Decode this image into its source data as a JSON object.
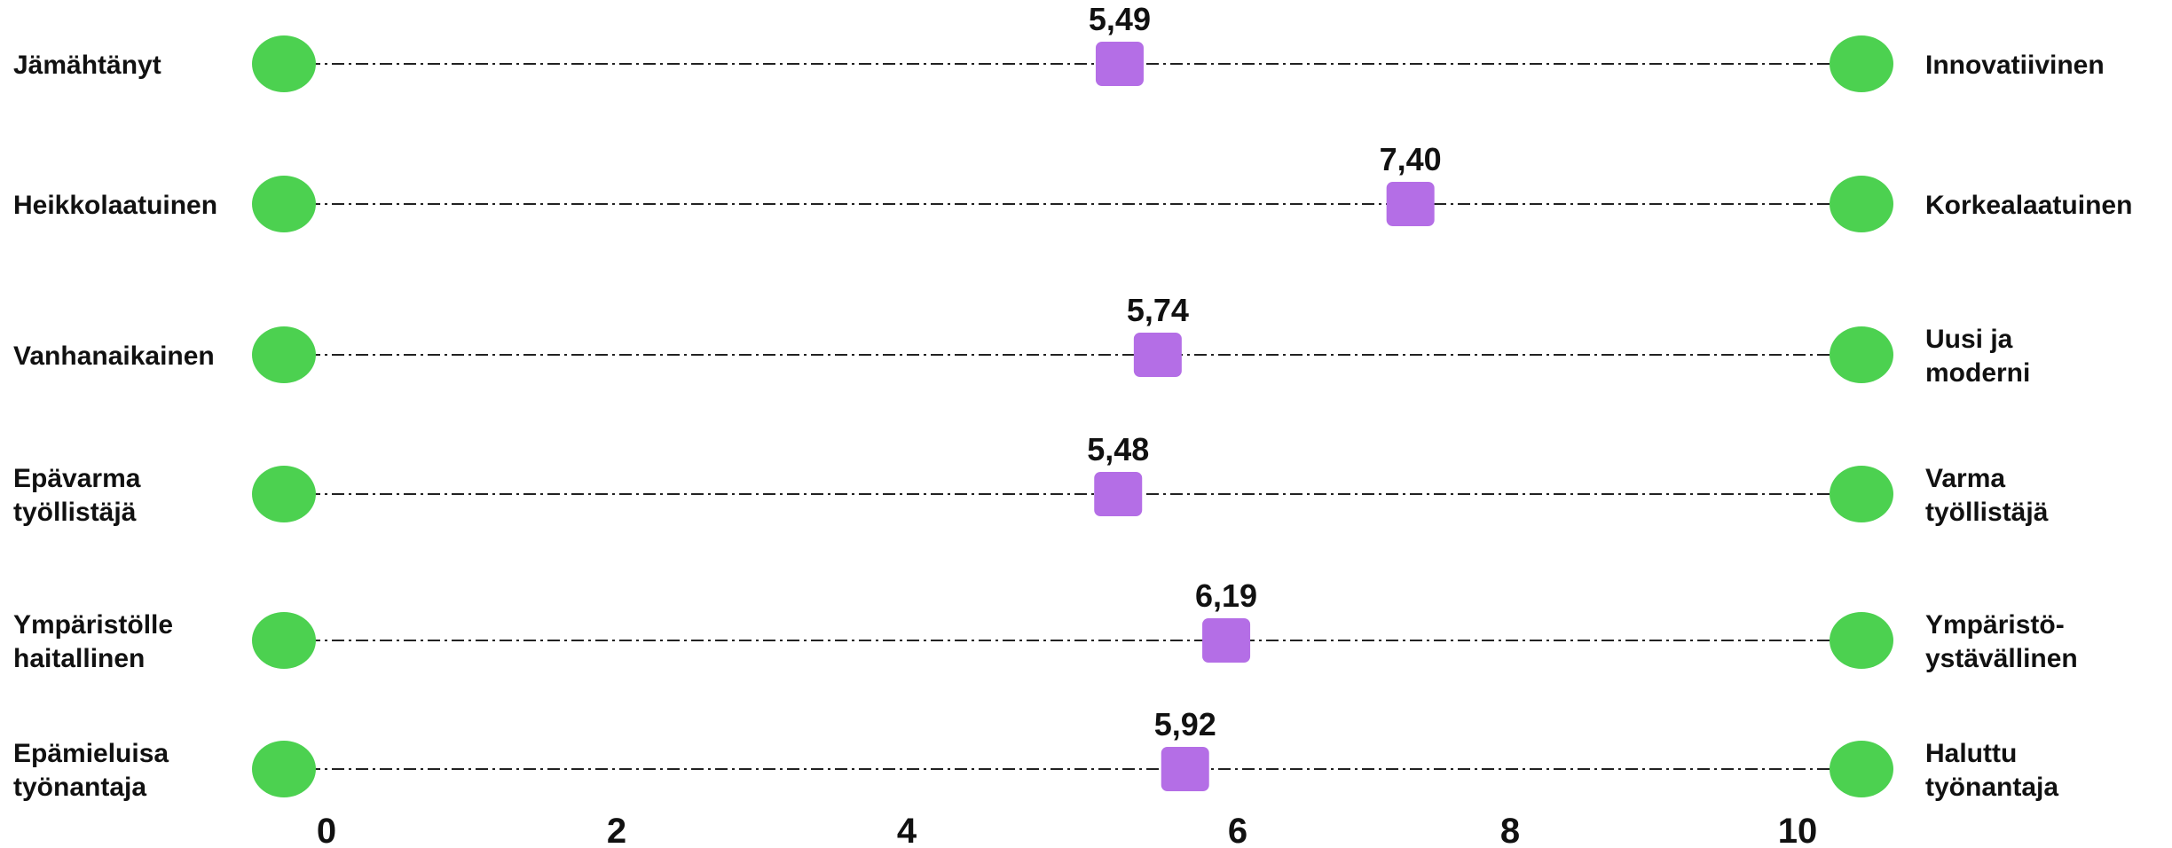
{
  "colors": {
    "endpoint": "#4cd150",
    "marker": "#b46ee6",
    "line": "#222222",
    "text": "#111111"
  },
  "chart_data": {
    "type": "scatter",
    "title": "",
    "xlabel": "",
    "ylabel": "",
    "xlim": [
      0,
      10
    ],
    "x_ticks": [
      "0",
      "2",
      "4",
      "6",
      "8",
      "10"
    ],
    "grid": false,
    "rows": [
      {
        "left": [
          "Jämähtänyt"
        ],
        "right": [
          "Innovatiivinen"
        ],
        "value": 5.49,
        "value_label": "5,49"
      },
      {
        "left": [
          "Heikkolaatuinen"
        ],
        "right": [
          "Korkealaatuinen"
        ],
        "value": 7.4,
        "value_label": "7,40"
      },
      {
        "left": [
          "Vanhanaikainen"
        ],
        "right": [
          "Uusi ja",
          "moderni"
        ],
        "value": 5.74,
        "value_label": "5,74"
      },
      {
        "left": [
          "Epävarma",
          "työllistäjä"
        ],
        "right": [
          "Varma",
          "työllistäjä"
        ],
        "value": 5.48,
        "value_label": "5,48"
      },
      {
        "left": [
          "Ympäristölle",
          "haitallinen"
        ],
        "right": [
          "Ympäristö-",
          "ystävällinen"
        ],
        "value": 6.19,
        "value_label": "6,19"
      },
      {
        "left": [
          "Epämieluisa",
          "työnantaja"
        ],
        "right": [
          "Haluttu",
          "työnantaja"
        ],
        "value": 5.92,
        "value_label": "5,92"
      }
    ]
  }
}
